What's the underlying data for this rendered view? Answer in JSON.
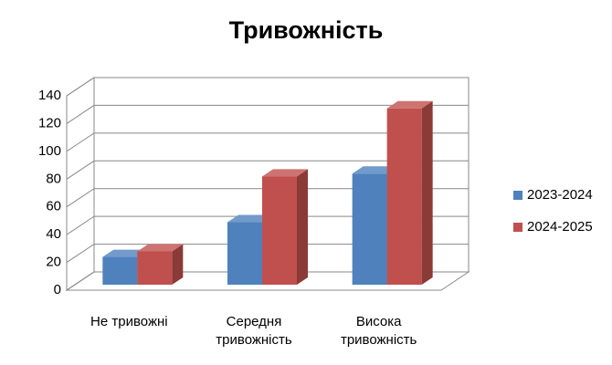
{
  "chart_data": {
    "type": "bar3d",
    "title": "Тривожність",
    "categories": [
      "Не тривожні",
      "Середня тривожність",
      "Висока тривожність"
    ],
    "series": [
      {
        "name": "2023-2024",
        "color": "#4f81bd",
        "values": [
          20,
          45,
          80
        ]
      },
      {
        "name": "2024-2025",
        "color": "#c0504d",
        "values": [
          24,
          78,
          127
        ]
      }
    ],
    "ylim": [
      0,
      140
    ],
    "yticks": [
      0,
      20,
      40,
      60,
      80,
      100,
      120,
      140
    ],
    "grid": true,
    "legend": "right"
  }
}
